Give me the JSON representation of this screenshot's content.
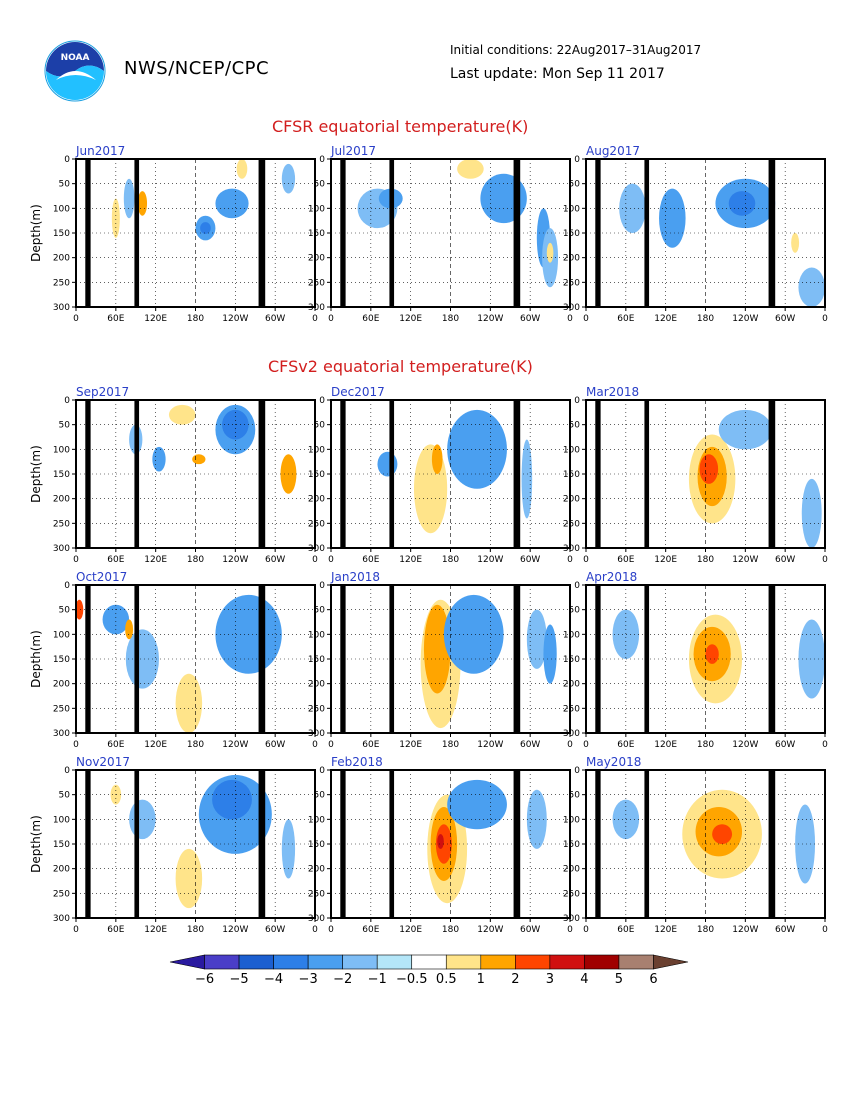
{
  "header": {
    "logo_text": "NOAA",
    "agency": "NWS/NCEP/CPC",
    "initial_conditions": "Initial conditions: 22Aug2017–31Aug2017",
    "last_update": "Last update: Mon Sep 11 2017"
  },
  "sections": {
    "cfsr_title": "CFSR equatorial temperature(K)",
    "cfsv2_title": "CFSv2 equatorial temperature(K)"
  },
  "chart_data": {
    "type": "heatmap",
    "ylabel": "Depth(m)",
    "ylim": [
      300,
      0
    ],
    "yticks": [
      "0",
      "50",
      "100",
      "150",
      "200",
      "250",
      "300"
    ],
    "xticks": [
      "0",
      "60E",
      "120E",
      "180",
      "120W",
      "60W",
      "0"
    ],
    "xrange_deg": [
      0,
      360
    ],
    "panels": [
      {
        "label": "Jun2017",
        "source": "CFSR"
      },
      {
        "label": "Jul2017",
        "source": "CFSR"
      },
      {
        "label": "Aug2017",
        "source": "CFSR"
      },
      {
        "label": "Sep2017",
        "source": "CFSv2"
      },
      {
        "label": "Dec2017",
        "source": "CFSv2"
      },
      {
        "label": "Mar2018",
        "source": "CFSv2"
      },
      {
        "label": "Oct2017",
        "source": "CFSv2"
      },
      {
        "label": "Jan2018",
        "source": "CFSv2"
      },
      {
        "label": "Apr2018",
        "source": "CFSv2"
      },
      {
        "label": "Nov2017",
        "source": "CFSv2"
      },
      {
        "label": "Feb2018",
        "source": "CFSv2"
      },
      {
        "label": "May2018",
        "source": "CFSv2"
      }
    ],
    "colorbar": {
      "labels": [
        "−6",
        "−5",
        "−4",
        "−3",
        "−2",
        "−1",
        "−0.5",
        "0.5",
        "1",
        "2",
        "3",
        "4",
        "5",
        "6"
      ],
      "colors": [
        "#2a1aa0",
        "#4a3ec8",
        "#1c5fd0",
        "#2d7fe8",
        "#4a9ff0",
        "#7ebdf5",
        "#b4e6f8",
        "#ffffff",
        "#ffe48a",
        "#ffa500",
        "#ff4500",
        "#d01010",
        "#a00000",
        "#a88070",
        "#6a4030"
      ]
    }
  }
}
